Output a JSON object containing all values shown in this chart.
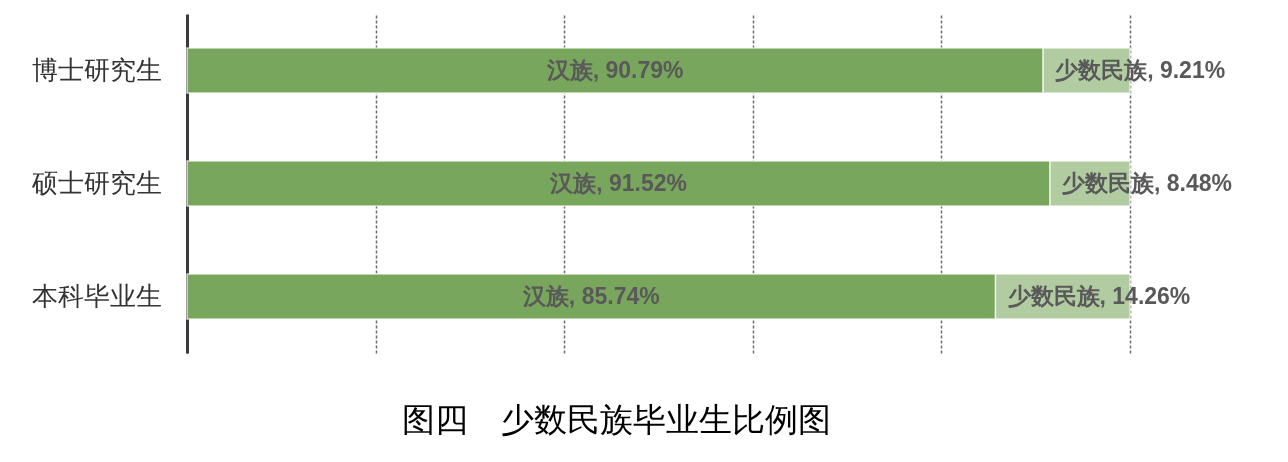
{
  "chart_data": {
    "type": "bar",
    "orientation": "horizontal",
    "stacked": true,
    "title": "图四　少数民族毕业生比例图",
    "categories": [
      "博士研究生",
      "硕士研究生",
      "本科毕业生"
    ],
    "series": [
      {
        "color": "#78a65c",
        "values": [
          90.79,
          91.52,
          85.74
        ],
        "value_labels": [
          "汉族, 90.79%",
          "汉族, 91.52%",
          "汉族, 85.74%"
        ]
      },
      {
        "color": "#b1cca1",
        "values": [
          9.21,
          8.48,
          14.26
        ],
        "value_labels": [
          "少数民族, 9.21%",
          "少数民族, 8.48%",
          "少数民族, 14.26%"
        ]
      }
    ],
    "xlim": [
      0,
      100
    ],
    "xticks": [
      {
        "value": 0,
        "label": null
      },
      {
        "value": 20,
        "label": null
      },
      {
        "value": 40,
        "label": null
      },
      {
        "value": 60,
        "label": null
      },
      {
        "value": 80,
        "label": null
      },
      {
        "value": 100,
        "label": null
      }
    ],
    "grid": "x",
    "tick_labels": "y"
  }
}
